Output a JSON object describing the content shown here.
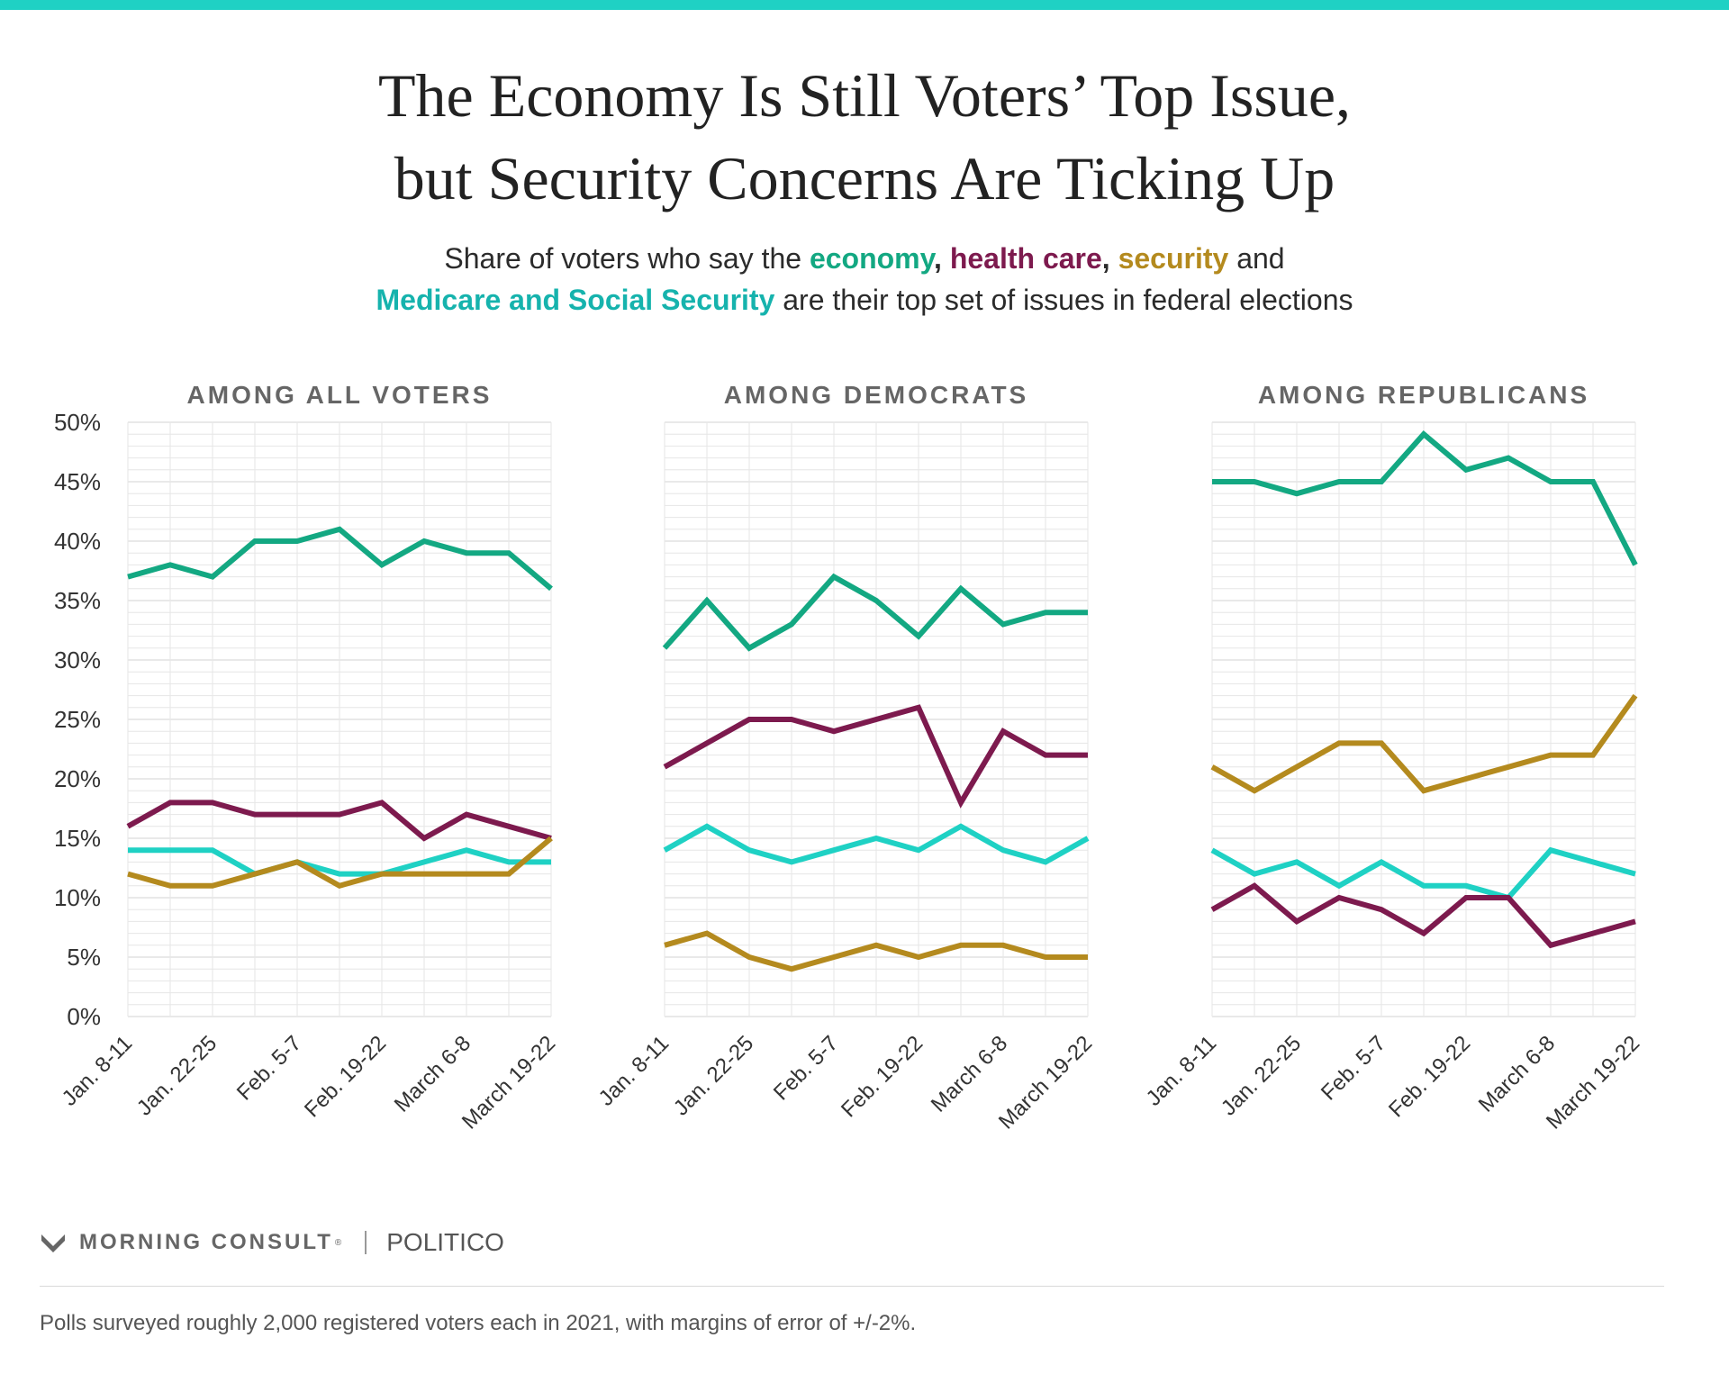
{
  "header": {
    "title_line1": "The Economy Is Still Voters’ Top Issue,",
    "title_line2": "but Security Concerns Are Ticking Up",
    "subtitle": {
      "part1": "Share of voters who say the ",
      "kw_economy": "economy",
      "comma1": ", ",
      "kw_health": "health care",
      "comma2": ", ",
      "kw_security": "security",
      "and": " and",
      "kw_medicare": "Medicare and Social Security",
      "part2": " are their top set of issues in federal elections"
    }
  },
  "colors": {
    "accent_bar": "#1fd1c4",
    "economy": "#13a882",
    "health_care": "#7d1a4e",
    "security": "#b48a1e",
    "medicare": "#1fd1c4"
  },
  "chart_data": {
    "type": "line",
    "y_ticks": [
      "50%",
      "45%",
      "40%",
      "35%",
      "30%",
      "25%",
      "20%",
      "15%",
      "10%",
      "5%",
      "0%"
    ],
    "ylim": [
      0,
      50
    ],
    "x_tick_labels": [
      "Jan. 8-11",
      "Jan. 22-25",
      "Feb. 5-7",
      "Feb. 19-22",
      "March 6-8",
      "March 19-22"
    ],
    "x_tick_label_every": 2,
    "grid": true,
    "panels": [
      {
        "title": "AMONG ALL VOTERS",
        "series": [
          {
            "key": "economy",
            "values": [
              37,
              38,
              37,
              40,
              40,
              41,
              38,
              40,
              39,
              39,
              36
            ]
          },
          {
            "key": "health_care",
            "values": [
              16,
              18,
              18,
              17,
              17,
              17,
              18,
              15,
              17,
              16,
              15
            ]
          },
          {
            "key": "medicare",
            "values": [
              14,
              14,
              14,
              12,
              13,
              12,
              12,
              13,
              14,
              13,
              13
            ]
          },
          {
            "key": "security",
            "values": [
              12,
              11,
              11,
              12,
              13,
              11,
              12,
              12,
              12,
              12,
              15
            ]
          }
        ]
      },
      {
        "title": "AMONG DEMOCRATS",
        "series": [
          {
            "key": "economy",
            "values": [
              31,
              35,
              31,
              33,
              37,
              35,
              32,
              36,
              33,
              34,
              34
            ]
          },
          {
            "key": "health_care",
            "values": [
              21,
              23,
              25,
              25,
              24,
              25,
              26,
              18,
              24,
              22,
              22
            ]
          },
          {
            "key": "medicare",
            "values": [
              14,
              16,
              14,
              13,
              14,
              15,
              14,
              16,
              14,
              13,
              15
            ]
          },
          {
            "key": "security",
            "values": [
              6,
              7,
              5,
              4,
              5,
              6,
              5,
              6,
              6,
              5,
              5
            ]
          }
        ]
      },
      {
        "title": "AMONG REPUBLICANS",
        "series": [
          {
            "key": "economy",
            "values": [
              45,
              45,
              44,
              45,
              45,
              49,
              46,
              47,
              45,
              45,
              38
            ]
          },
          {
            "key": "security",
            "values": [
              21,
              19,
              21,
              23,
              23,
              19,
              20,
              21,
              22,
              22,
              27
            ]
          },
          {
            "key": "medicare",
            "values": [
              14,
              12,
              13,
              11,
              13,
              11,
              11,
              10,
              14,
              13,
              12
            ]
          },
          {
            "key": "health_care",
            "values": [
              9,
              11,
              8,
              10,
              9,
              7,
              10,
              10,
              6,
              7,
              8
            ]
          }
        ]
      }
    ]
  },
  "footer": {
    "brand_name": "MORNING CONSULT",
    "brand_reg": "®",
    "partner": "POLITICO",
    "note": "Polls surveyed roughly 2,000 registered voters each in 2021, with margins of error of +/-2%."
  }
}
